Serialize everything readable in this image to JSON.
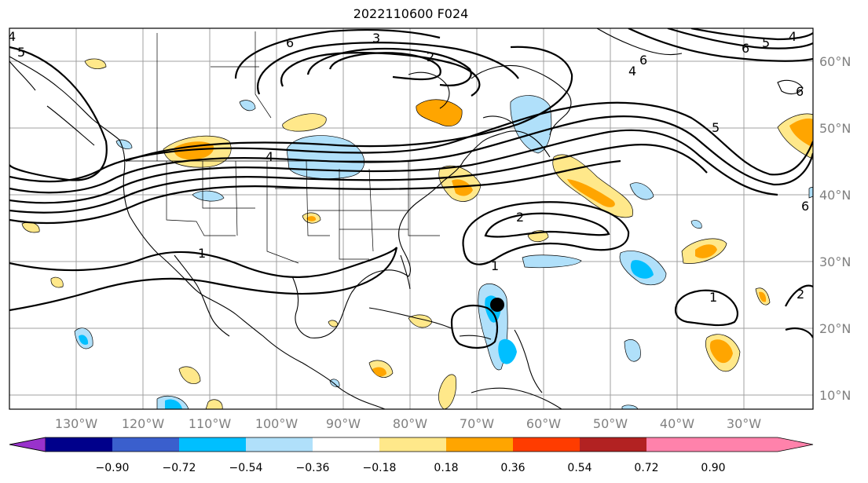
{
  "title": "2022110600 F024",
  "map": {
    "lon_labels": [
      "130°W",
      "120°W",
      "110°W",
      "100°W",
      "90°W",
      "80°W",
      "70°W",
      "60°W",
      "50°W",
      "40°W",
      "30°W"
    ],
    "lat_labels": [
      "60°N",
      "50°N",
      "40°N",
      "30°N",
      "20°N",
      "10°N"
    ],
    "contour_labels": [
      "4",
      "5",
      "6",
      "3",
      "2",
      "6",
      "5",
      "4",
      "1",
      "2",
      "1",
      "1",
      "2",
      "4",
      "6",
      "6",
      "5",
      "4",
      "6"
    ],
    "marker": "storm-center"
  },
  "colorbar": {
    "ticks": [
      "−0.90",
      "−0.72",
      "−0.54",
      "−0.36",
      "−0.18",
      "0.18",
      "0.36",
      "0.54",
      "0.72",
      "0.90"
    ],
    "colors": [
      "#9932cc",
      "#00008b",
      "#3a5fcd",
      "#00bfff",
      "#b0e0fa",
      "#ffffff",
      "#ffe88a",
      "#ffa500",
      "#ff3c00",
      "#b22222",
      "#ff82ab"
    ]
  }
}
